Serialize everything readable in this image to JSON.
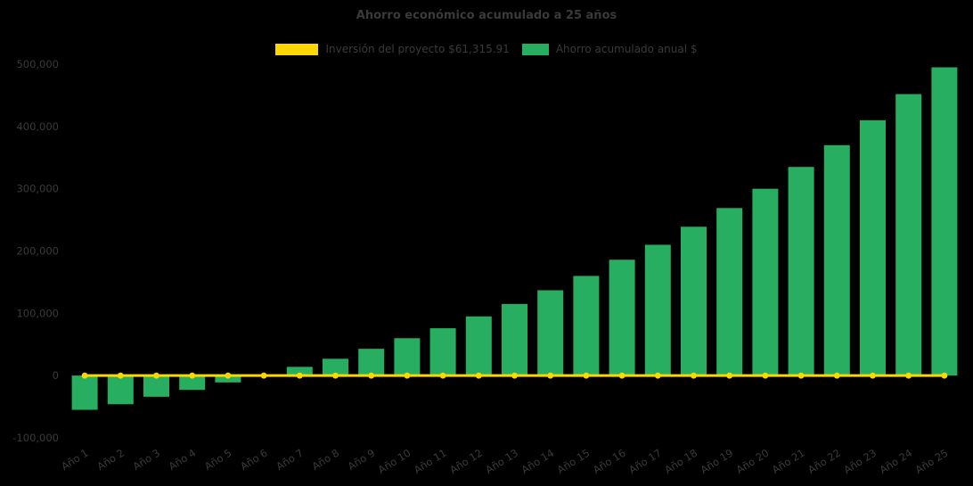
{
  "title": "Ahorro económico acumulado a 25 años",
  "legend": [
    {
      "label": "Inversión del proyecto $61,315.91",
      "color": "#fdd700"
    },
    {
      "label": "Ahorro acumulado anual $",
      "color": "#27ae60"
    }
  ],
  "colors": {
    "background": "#000000",
    "text": "#3a3a3a",
    "bar": "#27ae60",
    "line": "#fdd700"
  },
  "chart_data": {
    "type": "bar",
    "title": "Ahorro económico acumulado a 25 años",
    "categories": [
      "Año 1",
      "Año 2",
      "Año 3",
      "Año 4",
      "Año 5",
      "Año 6",
      "Año 7",
      "Año 8",
      "Año 9",
      "Año 10",
      "Año 11",
      "Año 12",
      "Año 13",
      "Año 14",
      "Año 15",
      "Año 16",
      "Año 17",
      "Año 18",
      "Año 19",
      "Año 20",
      "Año 21",
      "Año 22",
      "Año 23",
      "Año 24",
      "Año 25"
    ],
    "series": [
      {
        "name": "Inversión del proyecto $61,315.91",
        "type": "line",
        "color": "#fdd700",
        "values": [
          0,
          0,
          0,
          0,
          0,
          0,
          0,
          0,
          0,
          0,
          0,
          0,
          0,
          0,
          0,
          0,
          0,
          0,
          0,
          0,
          0,
          0,
          0,
          0,
          0
        ]
      },
      {
        "name": "Ahorro acumulado anual $",
        "type": "bar",
        "color": "#27ae60",
        "values": [
          -55000,
          -46000,
          -34000,
          -23000,
          -11000,
          1000,
          14000,
          27000,
          43000,
          60000,
          76000,
          95000,
          115000,
          137000,
          160000,
          186000,
          210000,
          239000,
          269000,
          300000,
          335000,
          370000,
          410000,
          452000,
          495000
        ]
      }
    ],
    "ylim": [
      -100000,
      500000
    ],
    "ytick_step": 100000,
    "grid": false,
    "legend_position": "top"
  }
}
